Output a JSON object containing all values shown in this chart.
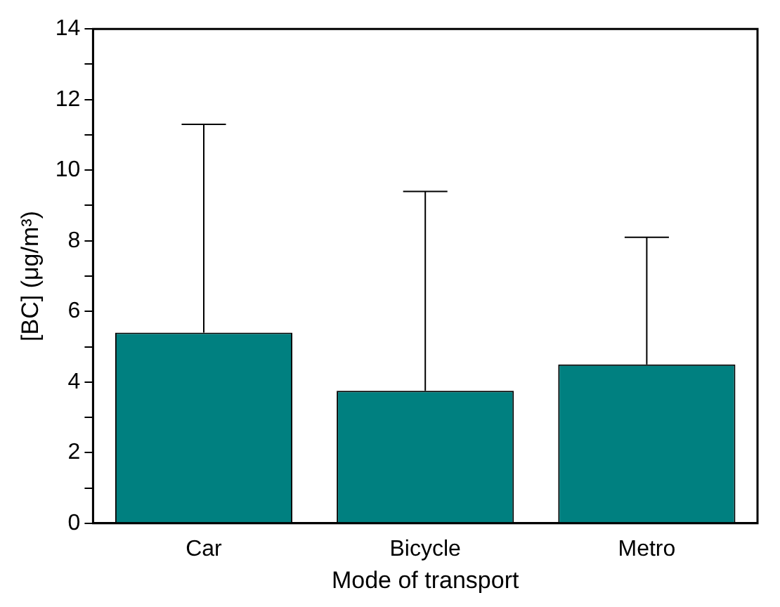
{
  "chart_data": {
    "type": "bar",
    "xlabel": "Mode of transport",
    "ylabel": "[BC] (μg/m³)",
    "categories": [
      "Car",
      "Bicycle",
      "Metro"
    ],
    "values": [
      5.4,
      3.75,
      4.5
    ],
    "errors": [
      [
        5.4,
        11.3
      ],
      [
        3.75,
        9.4
      ],
      [
        4.5,
        8.1
      ]
    ],
    "color": "#008080",
    "ylim": [
      0,
      14
    ],
    "yticks": [
      0,
      {
        "value": 1,
        "label": null
      },
      2,
      {
        "value": 3,
        "label": null
      },
      4,
      {
        "value": 5,
        "label": null
      },
      6,
      {
        "value": 7,
        "label": null
      },
      8,
      {
        "value": 9,
        "label": null
      },
      10,
      {
        "value": 11,
        "label": null
      },
      12,
      {
        "value": 13,
        "label": null
      },
      14
    ],
    "grid": false,
    "legend": false
  }
}
